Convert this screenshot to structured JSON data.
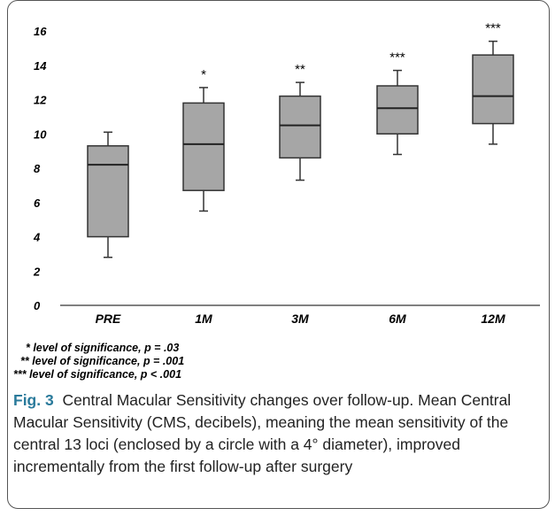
{
  "chart_data": {
    "type": "boxplot",
    "categories": [
      "PRE",
      "1M",
      "3M",
      "6M",
      "12M"
    ],
    "boxes": [
      {
        "category": "PRE",
        "min": 2.8,
        "q1": 4.0,
        "median": 8.2,
        "q3": 9.3,
        "max": 10.1,
        "significance": ""
      },
      {
        "category": "1M",
        "min": 5.5,
        "q1": 6.7,
        "median": 9.4,
        "q3": 11.8,
        "max": 12.7,
        "significance": "*"
      },
      {
        "category": "3M",
        "min": 7.3,
        "q1": 8.6,
        "median": 10.5,
        "q3": 12.2,
        "max": 13.0,
        "significance": "**"
      },
      {
        "category": "6M",
        "min": 8.8,
        "q1": 10.0,
        "median": 11.5,
        "q3": 12.8,
        "max": 13.7,
        "significance": "***"
      },
      {
        "category": "12M",
        "min": 9.4,
        "q1": 10.6,
        "median": 12.2,
        "q3": 14.6,
        "max": 15.4,
        "significance": "***"
      }
    ],
    "yticks": [
      0,
      2,
      4,
      6,
      8,
      10,
      12,
      14,
      16
    ],
    "ylim": [
      0,
      16
    ],
    "colors": {
      "box_fill": "#a6a6a6",
      "box_stroke": "#333333",
      "axis": "#000000"
    }
  },
  "notes": [
    "* level of significance, p = .03",
    "** level of significance, p = .001",
    "*** level of significance, p < .001"
  ],
  "caption": {
    "label": "Fig. 3",
    "text": "Central Macular Sensitivity changes over follow-up. Mean Central Macular Sensitivity (CMS, decibels), meaning the mean sensitivity of the central 13 loci (enclosed by a circle with a 4° diameter), improved incrementally from the first follow-up after surgery"
  }
}
